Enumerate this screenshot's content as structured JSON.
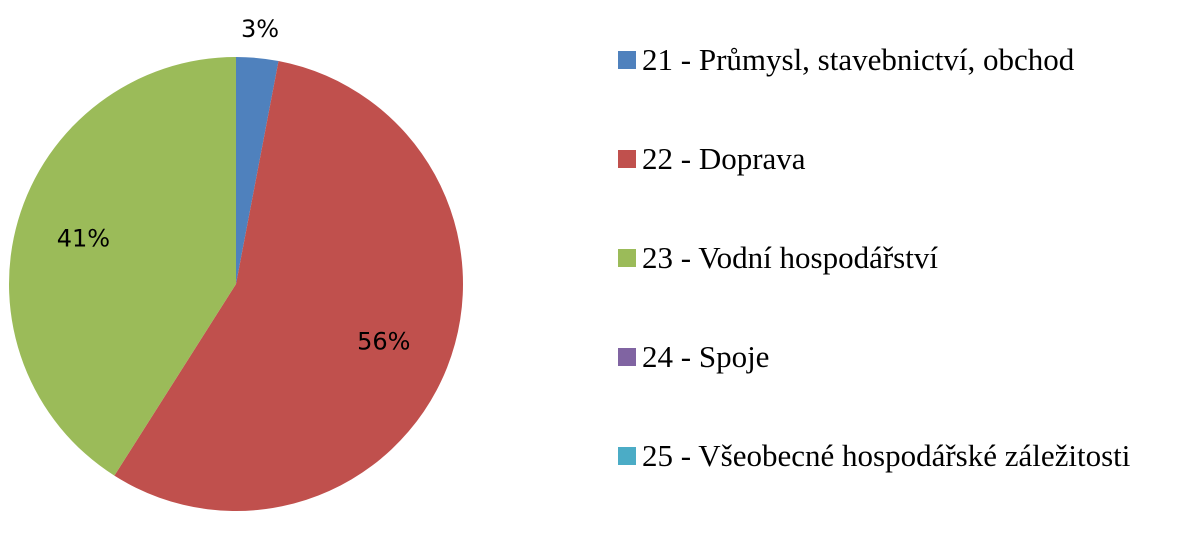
{
  "chart_data": {
    "type": "pie",
    "categories": [
      "21 - Průmysl, stavebnictví, obchod",
      "22 - Doprava",
      "23 - Vodní hospodářství",
      "24 - Spoje",
      "25 - Všeobecné hospodářské záležitosti"
    ],
    "values": [
      3,
      56,
      41,
      0,
      0
    ],
    "value_labels": [
      "3%",
      "56%",
      "41%",
      null,
      null
    ],
    "colors": [
      "#4f81bd",
      "#c0504d",
      "#9bbb59",
      "#8064a2",
      "#4bacc6"
    ],
    "legend": "right"
  }
}
